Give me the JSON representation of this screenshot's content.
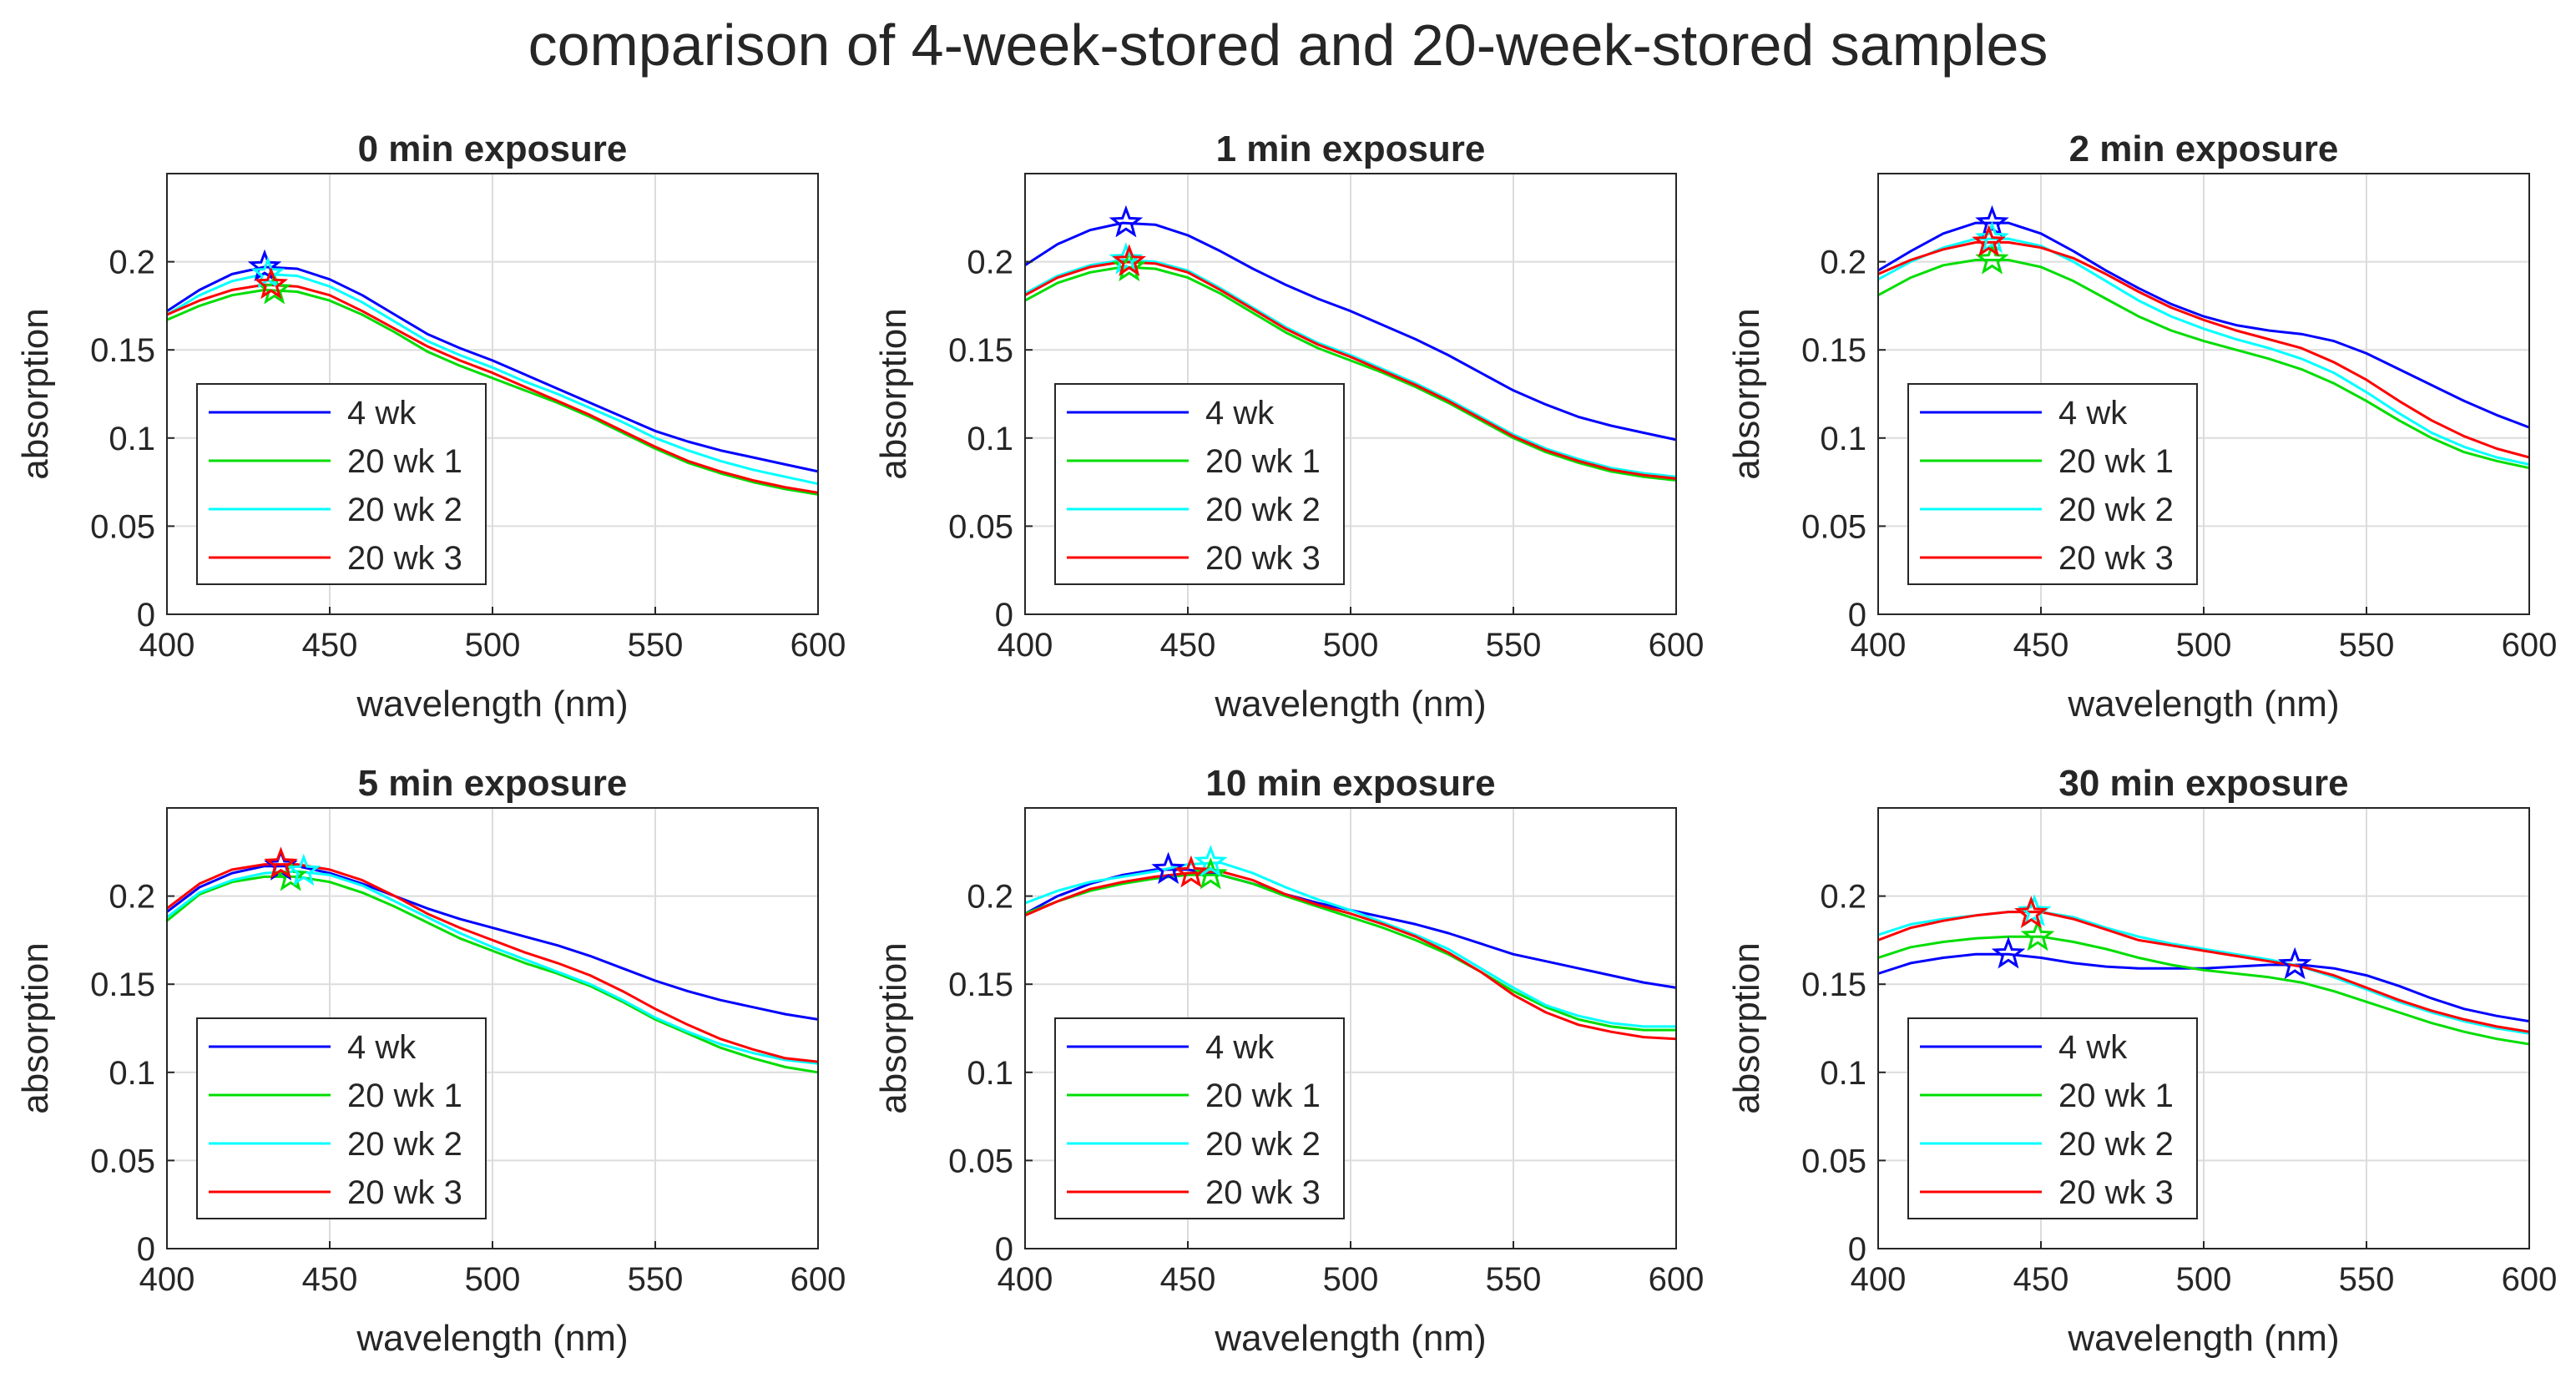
{
  "figure": {
    "title": "comparison of 4-week-stored and 20-week-stored samples"
  },
  "colors": {
    "4 wk": "#0000ff",
    "20 wk 1": "#00dd00",
    "20 wk 2": "#00ffff",
    "20 wk 3": "#ff0000",
    "grid": "#dcdcdc",
    "axis": "#262626"
  },
  "chart_data": [
    {
      "type": "line",
      "title": "0 min exposure",
      "xlabel": "wavelength (nm)",
      "ylabel": "absorption",
      "xlim": [
        400,
        600
      ],
      "ylim": [
        0,
        0.25
      ],
      "xticks": [
        "400",
        "450",
        "500",
        "550",
        "600"
      ],
      "yticks": [
        "0",
        "0.05",
        "0.1",
        "0.15",
        "0.2"
      ],
      "x": [
        400,
        410,
        420,
        430,
        440,
        450,
        460,
        470,
        480,
        490,
        500,
        510,
        520,
        530,
        540,
        550,
        560,
        570,
        580,
        590,
        600
      ],
      "series": [
        {
          "name": "4 wk",
          "values": [
            0.172,
            0.184,
            0.193,
            0.197,
            0.196,
            0.19,
            0.181,
            0.17,
            0.159,
            0.151,
            0.144,
            0.136,
            0.128,
            0.12,
            0.112,
            0.104,
            0.098,
            0.093,
            0.089,
            0.085,
            0.081
          ],
          "peak": [
            430,
            0.197
          ]
        },
        {
          "name": "20 wk 1",
          "values": [
            0.167,
            0.175,
            0.181,
            0.184,
            0.183,
            0.178,
            0.17,
            0.16,
            0.149,
            0.141,
            0.134,
            0.127,
            0.12,
            0.112,
            0.103,
            0.094,
            0.086,
            0.08,
            0.075,
            0.071,
            0.068
          ],
          "peak": [
            433,
            0.184
          ]
        },
        {
          "name": "20 wk 2",
          "values": [
            0.17,
            0.181,
            0.189,
            0.193,
            0.192,
            0.186,
            0.177,
            0.166,
            0.155,
            0.147,
            0.14,
            0.132,
            0.125,
            0.117,
            0.109,
            0.1,
            0.093,
            0.087,
            0.082,
            0.078,
            0.074
          ],
          "peak": [
            431,
            0.193
          ]
        },
        {
          "name": "20 wk 3",
          "values": [
            0.17,
            0.178,
            0.184,
            0.187,
            0.186,
            0.181,
            0.172,
            0.162,
            0.152,
            0.144,
            0.137,
            0.129,
            0.121,
            0.113,
            0.104,
            0.095,
            0.087,
            0.081,
            0.076,
            0.072,
            0.069
          ],
          "peak": [
            432,
            0.187
          ]
        }
      ],
      "legend": {
        "location": "lower-left",
        "entries": [
          "4 wk",
          "20 wk 1",
          "20 wk 2",
          "20 wk 3"
        ]
      }
    },
    {
      "type": "line",
      "title": "1 min exposure",
      "xlabel": "wavelength (nm)",
      "ylabel": "absorption",
      "xlim": [
        400,
        600
      ],
      "ylim": [
        0,
        0.25
      ],
      "xticks": [
        "400",
        "450",
        "500",
        "550",
        "600"
      ],
      "yticks": [
        "0",
        "0.05",
        "0.1",
        "0.15",
        "0.2"
      ],
      "x": [
        400,
        410,
        420,
        430,
        440,
        450,
        460,
        470,
        480,
        490,
        500,
        510,
        520,
        530,
        540,
        550,
        560,
        570,
        580,
        590,
        600
      ],
      "series": [
        {
          "name": "4 wk",
          "values": [
            0.198,
            0.21,
            0.218,
            0.222,
            0.221,
            0.215,
            0.206,
            0.196,
            0.187,
            0.179,
            0.172,
            0.164,
            0.156,
            0.147,
            0.137,
            0.127,
            0.119,
            0.112,
            0.107,
            0.103,
            0.099
          ],
          "peak": [
            431,
            0.222
          ]
        },
        {
          "name": "20 wk 1",
          "values": [
            0.178,
            0.188,
            0.194,
            0.197,
            0.196,
            0.191,
            0.182,
            0.171,
            0.16,
            0.151,
            0.144,
            0.137,
            0.129,
            0.12,
            0.11,
            0.1,
            0.092,
            0.086,
            0.081,
            0.078,
            0.076
          ],
          "peak": [
            432,
            0.197
          ]
        },
        {
          "name": "20 wk 2",
          "values": [
            0.182,
            0.192,
            0.198,
            0.201,
            0.2,
            0.195,
            0.185,
            0.174,
            0.163,
            0.154,
            0.147,
            0.139,
            0.131,
            0.122,
            0.112,
            0.102,
            0.094,
            0.088,
            0.083,
            0.08,
            0.078
          ],
          "peak": [
            431,
            0.201
          ]
        },
        {
          "name": "20 wk 3",
          "values": [
            0.181,
            0.191,
            0.197,
            0.2,
            0.199,
            0.194,
            0.184,
            0.173,
            0.162,
            0.153,
            0.146,
            0.138,
            0.13,
            0.121,
            0.111,
            0.101,
            0.093,
            0.087,
            0.082,
            0.079,
            0.077
          ],
          "peak": [
            432,
            0.2
          ]
        }
      ],
      "legend": {
        "location": "lower-left",
        "entries": [
          "4 wk",
          "20 wk 1",
          "20 wk 2",
          "20 wk 3"
        ]
      }
    },
    {
      "type": "line",
      "title": "2 min exposure",
      "xlabel": "wavelength (nm)",
      "ylabel": "absorption",
      "xlim": [
        400,
        600
      ],
      "ylim": [
        0,
        0.25
      ],
      "xticks": [
        "400",
        "450",
        "500",
        "550",
        "600"
      ],
      "yticks": [
        "0",
        "0.05",
        "0.1",
        "0.15",
        "0.2"
      ],
      "x": [
        400,
        410,
        420,
        430,
        440,
        450,
        460,
        470,
        480,
        490,
        500,
        510,
        520,
        530,
        540,
        550,
        560,
        570,
        580,
        590,
        600
      ],
      "series": [
        {
          "name": "4 wk",
          "values": [
            0.195,
            0.206,
            0.216,
            0.222,
            0.222,
            0.216,
            0.206,
            0.195,
            0.185,
            0.176,
            0.169,
            0.164,
            0.161,
            0.159,
            0.155,
            0.148,
            0.139,
            0.13,
            0.121,
            0.113,
            0.106
          ],
          "peak": [
            435,
            0.222
          ]
        },
        {
          "name": "20 wk 1",
          "values": [
            0.181,
            0.191,
            0.198,
            0.201,
            0.201,
            0.197,
            0.189,
            0.179,
            0.169,
            0.161,
            0.155,
            0.15,
            0.145,
            0.139,
            0.131,
            0.121,
            0.11,
            0.1,
            0.092,
            0.087,
            0.083
          ],
          "peak": [
            435,
            0.201
          ]
        },
        {
          "name": "20 wk 2",
          "values": [
            0.19,
            0.2,
            0.208,
            0.213,
            0.213,
            0.209,
            0.2,
            0.189,
            0.178,
            0.169,
            0.162,
            0.156,
            0.151,
            0.145,
            0.137,
            0.126,
            0.114,
            0.103,
            0.095,
            0.089,
            0.085
          ],
          "peak": [
            435,
            0.213
          ]
        },
        {
          "name": "20 wk 3",
          "values": [
            0.193,
            0.201,
            0.207,
            0.211,
            0.211,
            0.208,
            0.202,
            0.193,
            0.183,
            0.174,
            0.167,
            0.161,
            0.156,
            0.151,
            0.143,
            0.133,
            0.121,
            0.11,
            0.101,
            0.094,
            0.089
          ],
          "peak": [
            434,
            0.211
          ]
        }
      ],
      "legend": {
        "location": "lower-left",
        "entries": [
          "4 wk",
          "20 wk 1",
          "20 wk 2",
          "20 wk 3"
        ]
      }
    },
    {
      "type": "line",
      "title": "5 min exposure",
      "xlabel": "wavelength (nm)",
      "ylabel": "absorption",
      "xlim": [
        400,
        600
      ],
      "ylim": [
        0,
        0.25
      ],
      "xticks": [
        "400",
        "450",
        "500",
        "550",
        "600"
      ],
      "yticks": [
        "0",
        "0.05",
        "0.1",
        "0.15",
        "0.2"
      ],
      "x": [
        400,
        410,
        420,
        430,
        440,
        450,
        460,
        470,
        480,
        490,
        500,
        510,
        520,
        530,
        540,
        550,
        560,
        570,
        580,
        590,
        600
      ],
      "series": [
        {
          "name": "4 wk",
          "values": [
            0.191,
            0.205,
            0.213,
            0.217,
            0.217,
            0.213,
            0.207,
            0.2,
            0.193,
            0.187,
            0.182,
            0.177,
            0.172,
            0.166,
            0.159,
            0.152,
            0.146,
            0.141,
            0.137,
            0.133,
            0.13
          ],
          "peak": [
            435,
            0.217
          ]
        },
        {
          "name": "20 wk 1",
          "values": [
            0.186,
            0.201,
            0.208,
            0.211,
            0.211,
            0.208,
            0.202,
            0.194,
            0.185,
            0.176,
            0.169,
            0.162,
            0.156,
            0.149,
            0.14,
            0.13,
            0.122,
            0.114,
            0.108,
            0.103,
            0.1
          ],
          "peak": [
            438,
            0.211
          ]
        },
        {
          "name": "20 wk 2",
          "values": [
            0.188,
            0.202,
            0.209,
            0.213,
            0.214,
            0.212,
            0.206,
            0.197,
            0.188,
            0.179,
            0.171,
            0.164,
            0.157,
            0.15,
            0.141,
            0.131,
            0.123,
            0.116,
            0.111,
            0.107,
            0.105
          ],
          "peak": [
            442,
            0.214
          ]
        },
        {
          "name": "20 wk 3",
          "values": [
            0.193,
            0.207,
            0.215,
            0.218,
            0.218,
            0.215,
            0.209,
            0.2,
            0.19,
            0.182,
            0.175,
            0.168,
            0.162,
            0.155,
            0.146,
            0.136,
            0.127,
            0.119,
            0.113,
            0.108,
            0.106
          ],
          "peak": [
            435,
            0.218
          ]
        }
      ],
      "legend": {
        "location": "lower-left",
        "entries": [
          "4 wk",
          "20 wk 1",
          "20 wk 2",
          "20 wk 3"
        ]
      }
    },
    {
      "type": "line",
      "title": "10 min exposure",
      "xlabel": "wavelength (nm)",
      "ylabel": "absorption",
      "xlim": [
        400,
        600
      ],
      "ylim": [
        0,
        0.25
      ],
      "xticks": [
        "400",
        "450",
        "500",
        "550",
        "600"
      ],
      "yticks": [
        "0",
        "0.05",
        "0.1",
        "0.15",
        "0.2"
      ],
      "x": [
        400,
        410,
        420,
        430,
        440,
        450,
        460,
        470,
        480,
        490,
        500,
        510,
        520,
        530,
        540,
        550,
        560,
        570,
        580,
        590,
        600
      ],
      "series": [
        {
          "name": "4 wk",
          "values": [
            0.19,
            0.2,
            0.207,
            0.212,
            0.215,
            0.215,
            0.212,
            0.207,
            0.201,
            0.196,
            0.192,
            0.188,
            0.184,
            0.179,
            0.173,
            0.167,
            0.163,
            0.159,
            0.155,
            0.151,
            0.148
          ],
          "peak": [
            444,
            0.215
          ]
        },
        {
          "name": "20 wk 1",
          "values": [
            0.19,
            0.197,
            0.203,
            0.207,
            0.21,
            0.212,
            0.212,
            0.207,
            0.2,
            0.194,
            0.188,
            0.182,
            0.175,
            0.167,
            0.157,
            0.146,
            0.137,
            0.13,
            0.126,
            0.124,
            0.124
          ],
          "peak": [
            457,
            0.212
          ]
        },
        {
          "name": "20 wk 2",
          "values": [
            0.196,
            0.203,
            0.208,
            0.211,
            0.214,
            0.218,
            0.219,
            0.213,
            0.205,
            0.198,
            0.192,
            0.185,
            0.178,
            0.17,
            0.159,
            0.148,
            0.138,
            0.132,
            0.128,
            0.126,
            0.126
          ],
          "peak": [
            457,
            0.219
          ]
        },
        {
          "name": "20 wk 3",
          "values": [
            0.189,
            0.197,
            0.204,
            0.208,
            0.211,
            0.213,
            0.214,
            0.209,
            0.201,
            0.195,
            0.19,
            0.184,
            0.177,
            0.168,
            0.157,
            0.144,
            0.134,
            0.127,
            0.123,
            0.12,
            0.119
          ],
          "peak": [
            451,
            0.213
          ]
        }
      ],
      "legend": {
        "location": "lower-left",
        "entries": [
          "4 wk",
          "20 wk 1",
          "20 wk 2",
          "20 wk 3"
        ]
      }
    },
    {
      "type": "line",
      "title": "30 min exposure",
      "xlabel": "wavelength (nm)",
      "ylabel": "absorption",
      "xlim": [
        400,
        600
      ],
      "ylim": [
        0,
        0.25
      ],
      "xticks": [
        "400",
        "450",
        "500",
        "550",
        "600"
      ],
      "yticks": [
        "0",
        "0.05",
        "0.1",
        "0.15",
        "0.2"
      ],
      "x": [
        400,
        410,
        420,
        430,
        440,
        450,
        460,
        470,
        480,
        490,
        500,
        510,
        520,
        530,
        540,
        550,
        560,
        570,
        580,
        590,
        600
      ],
      "series": [
        {
          "name": "4 wk",
          "values": [
            0.156,
            0.162,
            0.165,
            0.167,
            0.167,
            0.165,
            0.162,
            0.16,
            0.159,
            0.159,
            0.159,
            0.16,
            0.161,
            0.161,
            0.159,
            0.155,
            0.149,
            0.142,
            0.136,
            0.132,
            0.129
          ],
          "peak": [
            440,
            0.167
          ]
        },
        {
          "name": "20 wk 1",
          "values": [
            0.165,
            0.171,
            0.174,
            0.176,
            0.177,
            0.177,
            0.174,
            0.17,
            0.165,
            0.161,
            0.158,
            0.156,
            0.154,
            0.151,
            0.146,
            0.14,
            0.134,
            0.128,
            0.123,
            0.119,
            0.116
          ],
          "peak": [
            449,
            0.177
          ]
        },
        {
          "name": "20 wk 2",
          "values": [
            0.178,
            0.184,
            0.187,
            0.189,
            0.191,
            0.191,
            0.188,
            0.182,
            0.177,
            0.173,
            0.17,
            0.167,
            0.164,
            0.16,
            0.154,
            0.147,
            0.14,
            0.134,
            0.129,
            0.125,
            0.122
          ],
          "peak": [
            448,
            0.191
          ]
        },
        {
          "name": "20 wk 3",
          "values": [
            0.175,
            0.182,
            0.186,
            0.189,
            0.191,
            0.191,
            0.187,
            0.181,
            0.175,
            0.172,
            0.169,
            0.166,
            0.163,
            0.16,
            0.155,
            0.148,
            0.141,
            0.135,
            0.13,
            0.126,
            0.123
          ],
          "peak": [
            447,
            0.19
          ]
        }
      ],
      "extra_markers": [
        {
          "series": "4 wk",
          "point": [
            528,
            0.161
          ]
        }
      ],
      "legend": {
        "location": "lower-left",
        "entries": [
          "4 wk",
          "20 wk 1",
          "20 wk 2",
          "20 wk 3"
        ]
      }
    }
  ]
}
